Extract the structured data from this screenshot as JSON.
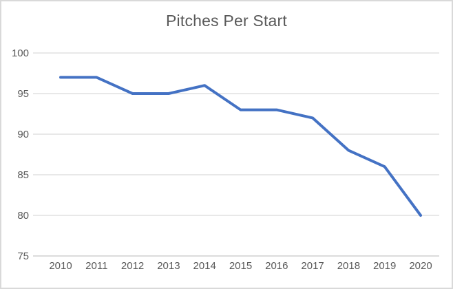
{
  "chart_data": {
    "type": "line",
    "title": "Pitches Per Start",
    "categories": [
      "2010",
      "2011",
      "2012",
      "2013",
      "2014",
      "2015",
      "2016",
      "2017",
      "2018",
      "2019",
      "2020"
    ],
    "values": [
      97,
      97,
      95,
      95,
      96,
      93,
      93,
      92,
      88,
      86,
      80
    ],
    "xlabel": "",
    "ylabel": "",
    "ylim": [
      75,
      100
    ],
    "yticks": [
      75,
      80,
      85,
      90,
      95,
      100
    ],
    "grid": true,
    "legend": false,
    "colors": {
      "line": "#4472C4",
      "gridline": "#D9D9D9",
      "axis_line": "#C6C6C6",
      "text": "#595959",
      "background": "#FFFFFF",
      "frame_border": "#D9D9D9"
    }
  }
}
